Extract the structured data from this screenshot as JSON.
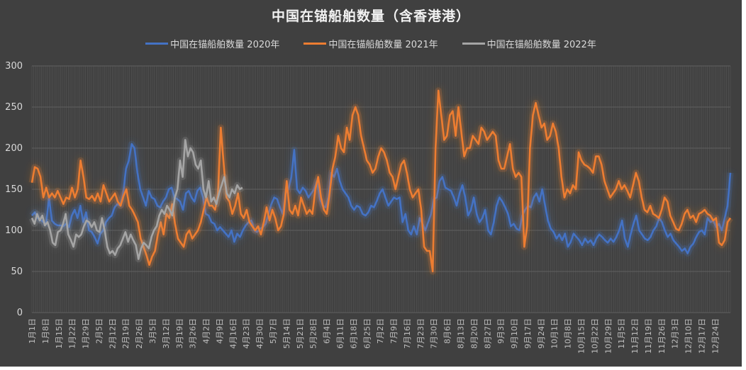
{
  "chart_data": {
    "type": "line",
    "title": "中国在锚船舶数量（含香港港）",
    "xlabel": "",
    "ylabel": "",
    "ylim": [
      0,
      300
    ],
    "yticks": [
      0,
      50,
      100,
      150,
      200,
      250,
      300
    ],
    "grid": true,
    "legend_position": "top",
    "x_tick_labels": [
      "1月1日",
      "1月8日",
      "1月15日",
      "1月22日",
      "1月29日",
      "2月5日",
      "2月12日",
      "2月19日",
      "2月26日",
      "3月5日",
      "3月12日",
      "3月19日",
      "3月26日",
      "4月2日",
      "4月9日",
      "4月16日",
      "4月23日",
      "4月30日",
      "5月7日",
      "5月14日",
      "5月21日",
      "5月28日",
      "6月4日",
      "6月11日",
      "6月18日",
      "6月25日",
      "7月2日",
      "7月9日",
      "7月16日",
      "7月23日",
      "7月30日",
      "8月6日",
      "8月13日",
      "8月20日",
      "8月27日",
      "9月3日",
      "9月10日",
      "9月17日",
      "9月24日",
      "10月1日",
      "10月8日",
      "10月15日",
      "10月22日",
      "10月29日",
      "11月5日",
      "11月12日",
      "11月19日",
      "11月26日",
      "12月3日",
      "12月10日",
      "12月17日",
      "12月24日"
    ],
    "x_resolution_note": "values sampled every ~2 days across Jan 1 - Dec 31 (183 points)",
    "series": [
      {
        "name": "中国在锚船舶数量 2020年",
        "color": "#4472C4",
        "values": [
          118,
          122,
          115,
          113,
          110,
          108,
          140,
          112,
          108,
          106,
          106,
          105,
          108,
          104,
          118,
          125,
          115,
          130,
          110,
          122,
          100,
          98,
          92,
          84,
          96,
          100,
          110,
          115,
          118,
          128,
          132,
          130,
          145,
          175,
          185,
          205,
          200,
          170,
          150,
          140,
          130,
          148,
          140,
          138,
          130,
          128,
          135,
          140,
          150,
          152,
          140,
          138,
          135,
          125,
          145,
          148,
          140,
          135,
          148,
          152,
          140,
          120,
          118,
          110,
          108,
          100,
          104,
          100,
          96,
          92,
          100,
          86,
          96,
          92,
          100,
          106,
          110,
          112,
          100,
          98,
          102,
          104,
          108,
          120,
          132,
          140,
          138,
          128,
          120,
          145,
          150,
          165,
          198,
          150,
          145,
          152,
          148,
          140,
          145,
          150,
          160,
          138,
          130,
          128,
          140,
          170,
          165,
          175,
          160,
          150,
          145,
          140,
          130,
          125,
          130,
          128,
          120,
          118,
          122,
          130,
          128,
          136,
          145,
          150,
          140,
          130,
          135,
          140,
          138,
          140,
          110,
          120,
          100,
          95,
          105,
          95,
          115,
          108,
          100,
          110,
          120,
          138,
          140,
          160,
          165,
          152,
          150,
          148,
          140,
          130,
          145,
          155,
          140,
          118,
          125,
          140,
          120,
          110,
          115,
          125,
          100,
          95,
          110,
          130,
          140,
          135,
          128,
          120,
          105,
          108,
          102,
          100,
          118,
          125,
          130,
          128,
          140,
          145,
          135,
          150,
          130,
          112,
          102,
          98,
          90,
          95,
          88,
          96,
          80,
          86
        ]
      },
      {
        "name": "中国在锚船舶数量 2021年",
        "color": "#ED7D31",
        "values": [
          158,
          177,
          175,
          165,
          140,
          152,
          140,
          145,
          140,
          148,
          140,
          132,
          140,
          138,
          152,
          140,
          150,
          185,
          165,
          140,
          138,
          142,
          136,
          145,
          135,
          155,
          145,
          135,
          140,
          145,
          135,
          130,
          142,
          150,
          130,
          125,
          118,
          110,
          90,
          80,
          70,
          58,
          68,
          75,
          95,
          110,
          95,
          120,
          115,
          132,
          108,
          90,
          85,
          80,
          95,
          100,
          90,
          95,
          100,
          110,
          125,
          140,
          130,
          130,
          125,
          145,
          225,
          180,
          140,
          135,
          120,
          130,
          145,
          120,
          115,
          125,
          110,
          105,
          100,
          105,
          95,
          110,
          128,
          112,
          125,
          115,
          100,
          105,
          120,
          160,
          125,
          120,
          130,
          118,
          140,
          130,
          120,
          125,
          120,
          150,
          165,
          140,
          125,
          120,
          145,
          175,
          190,
          215,
          200,
          195,
          225,
          210,
          240,
          250,
          240,
          215,
          200,
          185,
          180,
          170,
          175,
          190,
          200,
          195,
          185,
          170,
          165,
          150,
          165,
          180,
          185,
          170,
          150,
          140,
          145,
          150,
          125,
          80,
          75,
          75,
          50,
          200,
          270,
          240,
          210,
          215,
          240,
          245,
          215,
          250,
          220,
          190,
          200,
          200,
          215,
          210,
          205,
          225,
          220,
          210,
          215,
          220,
          215,
          185,
          175,
          175,
          190,
          205,
          175,
          165,
          170,
          165,
          80,
          105,
          200,
          240,
          255,
          240,
          225,
          230,
          210,
          215,
          230,
          220
        ]
      },
      {
        "name": "中国在锚船舶数量 2022年",
        "color": "#A5A5A5",
        "values": [
          115,
          108,
          120,
          112,
          118,
          106,
          110,
          100,
          85,
          82,
          98,
          100,
          108,
          120,
          95,
          88,
          80,
          95,
          92,
          95,
          105,
          112,
          110,
          104,
          110,
          100,
          98,
          115,
          100,
          80,
          72,
          75,
          70,
          78,
          82,
          90,
          98,
          86,
          95,
          88,
          82,
          65,
          78,
          85,
          82,
          78,
          92,
          100,
          105,
          118,
          125,
          120,
          130,
          125,
          118,
          140,
          150,
          185,
          165,
          210,
          190,
          200,
          195,
          180,
          175,
          185,
          150,
          140,
          160,
          135,
          140,
          132,
          145,
          155,
          165,
          145,
          140,
          150,
          145,
          155,
          150,
          152
        ]
      }
    ],
    "series_tail_2021_oct_dec": [
      200,
      165,
      140,
      150,
      145,
      155,
      150,
      195,
      185,
      180,
      178,
      175,
      170,
      190,
      190,
      180,
      160,
      150,
      140,
      145,
      150,
      160,
      150,
      155,
      148,
      140,
      155,
      170,
      160,
      140,
      125,
      122,
      130,
      120,
      118,
      115,
      125,
      140,
      135,
      118,
      110,
      102,
      100,
      108,
      120,
      125,
      115,
      118,
      110,
      120,
      122,
      125,
      120,
      118,
      112,
      115,
      85,
      82,
      88,
      110,
      115
    ],
    "series_tail_2020_oct_dec": [
      96,
      92,
      88,
      82,
      90,
      85,
      88,
      82,
      90,
      95,
      92,
      88,
      85,
      90,
      86,
      92,
      100,
      112,
      90,
      80,
      95,
      108,
      118,
      100,
      95,
      90,
      88,
      92,
      100,
      105,
      115,
      110,
      100,
      92,
      96,
      88,
      84,
      80,
      75,
      78,
      72,
      80,
      84,
      92,
      98,
      100,
      95,
      115,
      110,
      112,
      104,
      108,
      100,
      115,
      130,
      170
    ]
  },
  "legend": {
    "items": [
      {
        "label": "中国在锚船舶数量 2020年",
        "color": "#4472C4"
      },
      {
        "label": "中国在锚船舶数量 2021年",
        "color": "#ED7D31"
      },
      {
        "label": "中国在锚船舶数量 2022年",
        "color": "#A5A5A5"
      }
    ]
  },
  "colors": {
    "background": "#404040",
    "gridline": "#595959",
    "text": "#d9d9d9"
  }
}
